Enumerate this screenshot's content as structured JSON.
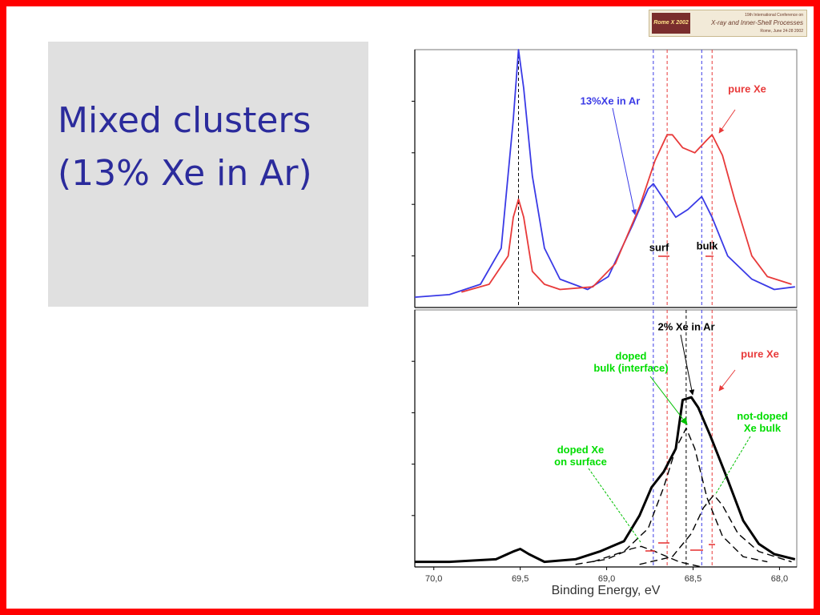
{
  "slide_title": "Mixed clusters (13% Xe in Ar)",
  "logo": {
    "badge": "Rome X 2002",
    "line1": "19th International Conference on",
    "line2": "X-ray and Inner-Shell Processes",
    "line3": "Rome, June 24-28 2002"
  },
  "chart_data": [
    {
      "type": "line",
      "xlim": [
        70.11,
        67.9
      ],
      "ylim": [
        0,
        1
      ],
      "series": [
        {
          "name": "13%Xe in Ar",
          "color": "#3a3ae6",
          "style": "solid",
          "x": [
            70.11,
            69.91,
            69.73,
            69.61,
            69.54,
            69.51,
            69.48,
            69.43,
            69.36,
            69.27,
            69.11,
            68.99,
            68.85,
            68.76,
            68.73,
            68.67,
            68.6,
            68.53,
            68.45,
            68.39,
            68.3,
            68.16,
            68.03,
            67.91
          ],
          "values": [
            0.04,
            0.05,
            0.09,
            0.23,
            0.73,
            1.0,
            0.85,
            0.51,
            0.23,
            0.11,
            0.07,
            0.12,
            0.32,
            0.46,
            0.48,
            0.42,
            0.35,
            0.38,
            0.43,
            0.35,
            0.2,
            0.11,
            0.07,
            0.08
          ]
        },
        {
          "name": "pure Xe",
          "color": "#e83a3a",
          "style": "solid",
          "x": [
            69.84,
            69.68,
            69.57,
            69.54,
            69.51,
            69.48,
            69.43,
            69.36,
            69.27,
            69.08,
            68.95,
            68.81,
            68.72,
            68.65,
            68.62,
            68.56,
            68.49,
            68.42,
            68.39,
            68.33,
            68.26,
            68.16,
            68.07,
            67.93
          ],
          "values": [
            0.06,
            0.09,
            0.2,
            0.35,
            0.42,
            0.35,
            0.14,
            0.09,
            0.07,
            0.08,
            0.17,
            0.39,
            0.57,
            0.67,
            0.67,
            0.62,
            0.6,
            0.65,
            0.67,
            0.59,
            0.42,
            0.2,
            0.12,
            0.09
          ]
        }
      ],
      "vlines": [
        {
          "x": 69.51,
          "color": "#000000"
        },
        {
          "x": 68.73,
          "color": "#3a3ae6"
        },
        {
          "x": 68.65,
          "color": "#e83a3a"
        },
        {
          "x": 68.45,
          "color": "#3a3ae6"
        },
        {
          "x": 68.39,
          "color": "#e83a3a"
        }
      ],
      "annotations": [
        {
          "text": "surf",
          "color": "#000000"
        },
        {
          "text": "bulk",
          "color": "#000000"
        }
      ]
    },
    {
      "type": "line",
      "xlim": [
        70.11,
        67.9
      ],
      "ylim": [
        0,
        1
      ],
      "xticks": [
        {
          "value": 70.0,
          "label": "70,0"
        },
        {
          "value": 69.5,
          "label": "69,5"
        },
        {
          "value": 69.0,
          "label": "69,0"
        },
        {
          "value": 68.5,
          "label": "68,5"
        },
        {
          "value": 68.0,
          "label": "68,0"
        }
      ],
      "xlabel": "Binding Energy, eV",
      "series": [
        {
          "name": "2% Xe in Ar",
          "color": "#000000",
          "style": "bold",
          "x": [
            70.11,
            69.91,
            69.64,
            69.54,
            69.5,
            69.45,
            69.36,
            69.18,
            69.04,
            68.9,
            68.81,
            68.74,
            68.67,
            68.6,
            68.56,
            68.51,
            68.47,
            68.4,
            68.3,
            68.21,
            68.12,
            68.03,
            67.91
          ],
          "values": [
            0.02,
            0.02,
            0.03,
            0.06,
            0.07,
            0.05,
            0.02,
            0.03,
            0.06,
            0.1,
            0.2,
            0.31,
            0.37,
            0.46,
            0.65,
            0.66,
            0.62,
            0.51,
            0.34,
            0.18,
            0.09,
            0.05,
            0.03
          ]
        },
        {
          "name": "doped\nbulk (interface)",
          "color": "#00dd00",
          "style": "dashed",
          "x": [
            69.08,
            68.9,
            68.76,
            68.67,
            68.6,
            68.54,
            68.49,
            68.42,
            68.33,
            68.21,
            68.07
          ],
          "values": [
            0.02,
            0.06,
            0.15,
            0.31,
            0.46,
            0.54,
            0.46,
            0.27,
            0.12,
            0.04,
            0.02
          ]
        },
        {
          "name": "not-doped\nXe bulk",
          "color": "#00dd00",
          "style": "dashed",
          "x": [
            68.81,
            68.62,
            68.51,
            68.44,
            68.38,
            68.33,
            68.24,
            68.12,
            67.93
          ],
          "values": [
            0.01,
            0.04,
            0.13,
            0.23,
            0.28,
            0.24,
            0.13,
            0.06,
            0.02
          ]
        },
        {
          "name": "doped Xe\non surface",
          "color": "#00dd00",
          "style": "dashed",
          "x": [
            69.18,
            69.0,
            68.86,
            68.8,
            68.72,
            68.58,
            68.45
          ],
          "values": [
            0.01,
            0.03,
            0.07,
            0.08,
            0.06,
            0.02,
            0.0
          ]
        }
      ],
      "vlines": [
        {
          "x": 68.73,
          "color": "#3a3ae6"
        },
        {
          "x": 68.65,
          "color": "#e83a3a"
        },
        {
          "x": 68.54,
          "color": "#000000"
        },
        {
          "x": 68.45,
          "color": "#3a3ae6"
        },
        {
          "x": 68.39,
          "color": "#e83a3a"
        }
      ],
      "annotations": [
        {
          "text": "pure Xe",
          "color": "#e83a3a"
        }
      ]
    }
  ]
}
